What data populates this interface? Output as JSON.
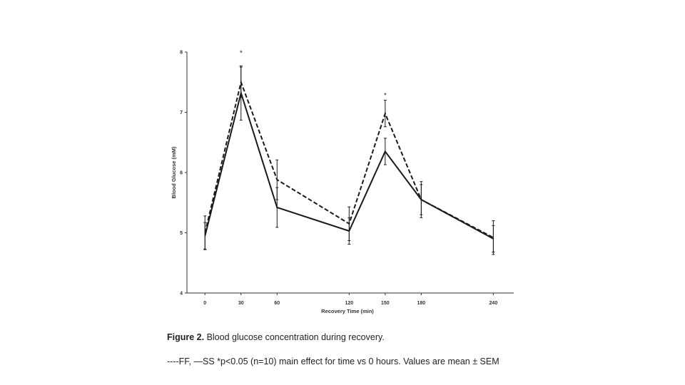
{
  "chart_data": {
    "type": "line",
    "title": "",
    "xlabel": "Recovery Time (min)",
    "ylabel": "Blood Glucose (mM)",
    "x": [
      0,
      30,
      60,
      120,
      150,
      180,
      240
    ],
    "xlim": [
      -15,
      257
    ],
    "ylim": [
      4,
      8
    ],
    "x_ticks": [
      "0",
      "30",
      "60",
      "120",
      "150",
      "180",
      "240"
    ],
    "y_ticks": [
      "4",
      "5",
      "6",
      "7",
      "8"
    ],
    "series": [
      {
        "name": "FF",
        "style": "dashed",
        "values": [
          5.0,
          7.5,
          5.88,
          5.15,
          6.98,
          5.55,
          4.92
        ],
        "errors": [
          0.28,
          0.25,
          0.33,
          0.28,
          0.22,
          0.3,
          0.28
        ]
      },
      {
        "name": "SS",
        "style": "solid",
        "values": [
          4.95,
          7.32,
          5.42,
          5.03,
          6.35,
          5.55,
          4.9
        ],
        "errors": [
          0.22,
          0.45,
          0.33,
          0.22,
          0.22,
          0.25,
          0.22
        ]
      }
    ],
    "annotations": [
      {
        "text": "*",
        "x": 30,
        "y": 7.98
      },
      {
        "text": "*",
        "x": 150,
        "y": 7.28
      }
    ],
    "grid": false,
    "line_color": "#1a1a1a"
  },
  "caption": {
    "label": "Figure 2.",
    "title": " Blood glucose concentration during recovery.",
    "note": "----FF, —SS *p<0.05 (n=10) main effect for time vs 0 hours. Values are mean ± SEM"
  }
}
